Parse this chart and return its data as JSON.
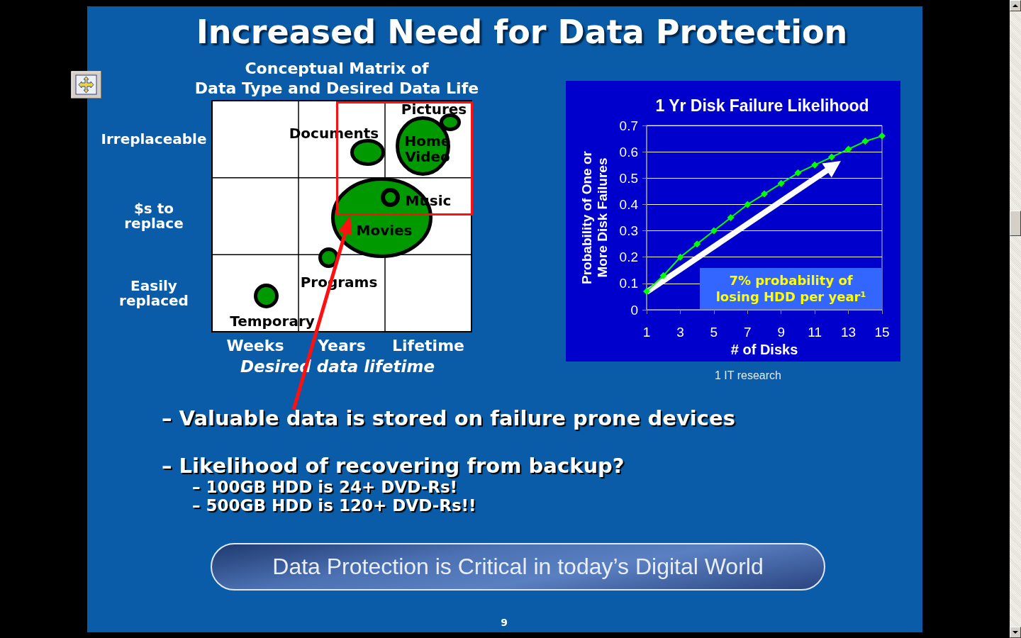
{
  "chart_data": [
    {
      "type": "other",
      "title": "Increased Need for Data Protection"
    },
    {
      "type": "other",
      "title": "Conceptual Matrix of\nData Type and Desired Data Life",
      "xlabel": "Desired data lifetime",
      "categories": [
        "Weeks",
        "Years",
        "Lifetime"
      ],
      "y_categories": [
        "Irreplaceable",
        "$s to\nreplace",
        "Easily\nreplaced"
      ],
      "annotations": [
        "Pictures",
        "Documents",
        "Home Video",
        "Music",
        "Movies",
        "Programs",
        "Temporary"
      ]
    },
    {
      "type": "line",
      "title": "1 Yr Disk Failure Likelihood",
      "xlabel": "# of Disks",
      "ylabel": "Probability of One or\nMore Disk Failures",
      "x": [
        1,
        2,
        3,
        4,
        5,
        6,
        7,
        8,
        9,
        10,
        11,
        12,
        13,
        14,
        15
      ],
      "xlim": [
        1,
        15
      ],
      "xticks": [
        1,
        3,
        5,
        7,
        9,
        11,
        13,
        15
      ],
      "ylim": [
        0,
        0.7
      ],
      "yticks": [
        0,
        0.1,
        0.2,
        0.3,
        0.4,
        0.5,
        0.6,
        0.7
      ],
      "grid": "y",
      "marker": "diamond",
      "series": [
        {
          "color": "#00ff00",
          "values": [
            0.07,
            0.13,
            0.2,
            0.25,
            0.3,
            0.35,
            0.4,
            0.44,
            0.48,
            0.52,
            0.55,
            0.58,
            0.61,
            0.64,
            0.66
          ]
        }
      ],
      "annotations": [
        "7% probability of\nlosing HDD per year¹",
        "1 IT research"
      ]
    },
    {
      "type": "other",
      "annotations": [
        "– Valuable data is stored on failure prone devices",
        "– Likelihood of recovering from backup?",
        "– 100GB HDD is 24+ DVD-Rs!",
        "– 500GB HDD is 120+ DVD-Rs!!",
        "Data Protection is Critical in today’s Digital World",
        "9"
      ]
    }
  ]
}
